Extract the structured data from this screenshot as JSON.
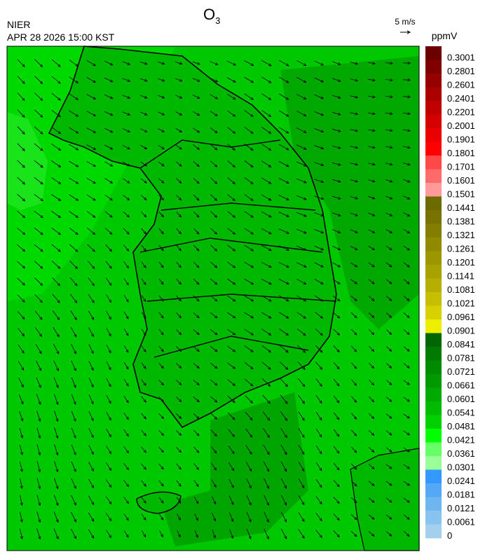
{
  "header": {
    "title": "O",
    "title_subscript": "3",
    "source": "NIER",
    "timestamp": "APR 28 2026 15:00 KST"
  },
  "wind_scale": {
    "label": "5 m/s"
  },
  "colorbar": {
    "unit": "ppmV",
    "labels": [
      "0.3001",
      "0.2801",
      "0.2601",
      "0.2401",
      "0.2201",
      "0.2001",
      "0.1901",
      "0.1801",
      "0.1701",
      "0.1601",
      "0.1501",
      "0.1441",
      "0.1381",
      "0.1321",
      "0.1261",
      "0.1201",
      "0.1141",
      "0.1081",
      "0.1021",
      "0.0961",
      "0.0901",
      "0.0841",
      "0.0781",
      "0.0721",
      "0.0661",
      "0.0601",
      "0.0541",
      "0.0481",
      "0.0421",
      "0.0361",
      "0.0301",
      "0.0241",
      "0.0181",
      "0.0121",
      "0.0061",
      "0"
    ],
    "colors": [
      "#6b0000",
      "#800000",
      "#950000",
      "#aa0000",
      "#c00000",
      "#d50000",
      "#ea0000",
      "#ff0000",
      "#ff4848",
      "#ff6a6a",
      "#ff9a9a",
      "#6b6b00",
      "#787200",
      "#847e00",
      "#908a00",
      "#9c9600",
      "#a8a200",
      "#b6ae00",
      "#c6be00",
      "#d8d000",
      "#eeee00",
      "#006600",
      "#007a00",
      "#008a00",
      "#009a00",
      "#00aa00",
      "#00bb00",
      "#00d000",
      "#00ff00",
      "#66ff66",
      "#99ff99",
      "#3399ff",
      "#55a8f5",
      "#6fb5f0",
      "#88c2ee",
      "#a4d0ee"
    ]
  }
}
